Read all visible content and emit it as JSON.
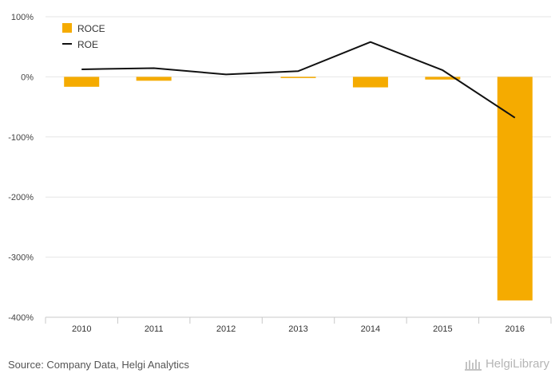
{
  "chart_data": {
    "type": "bar",
    "categories": [
      "2010",
      "2011",
      "2012",
      "2013",
      "2014",
      "2015",
      "2016"
    ],
    "series": [
      {
        "name": "ROCE",
        "type": "bar",
        "values": [
          -16.5,
          -6.5,
          0.0,
          -2.0,
          -17.5,
          -4.5,
          -372.0
        ]
      },
      {
        "name": "ROE",
        "type": "line",
        "values": [
          12.5,
          14.5,
          4.0,
          9.5,
          58.0,
          11.0,
          -68.0
        ]
      }
    ],
    "ylim": [
      -400,
      100
    ],
    "yticks": [
      100,
      0,
      -100,
      -200,
      -300,
      -400
    ],
    "ytick_labels": [
      "100%",
      "0%",
      "-100%",
      "-200%",
      "-300%",
      "-400%"
    ],
    "grid": true,
    "legend_position": "top-left"
  },
  "colors": {
    "roce": "#f5ab00",
    "roe": "#111111",
    "grid": "#e6e6e6"
  },
  "footer": {
    "source": "Source: Company Data, Helgi Analytics",
    "brand": "HelgiLibrary"
  }
}
